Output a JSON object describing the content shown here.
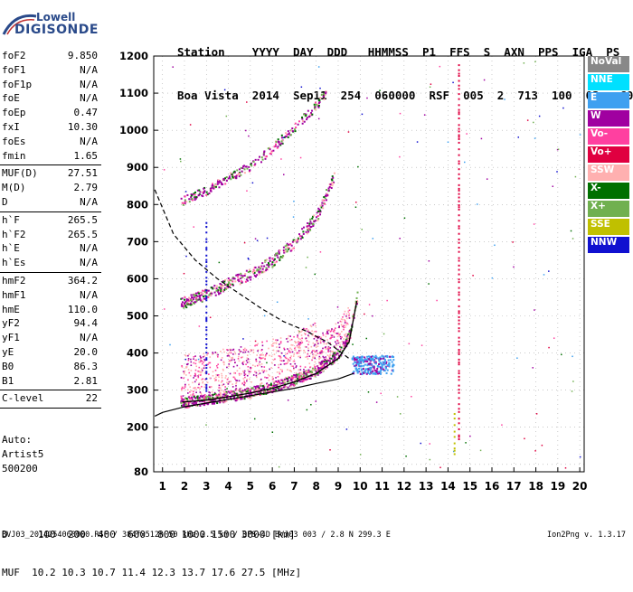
{
  "logo": {
    "line1": "Lowell",
    "line2": "DIGISONDE"
  },
  "header": {
    "labels": [
      "Station",
      "YYYY",
      "DAY",
      "DDD",
      "HHMMSS",
      "P1",
      "FFS",
      "S",
      "AXN",
      "PPS",
      "IGA",
      "PS"
    ],
    "values": [
      "Boa Vista",
      "2014",
      "Sep11",
      "254",
      "060000",
      "RSF",
      "005",
      "2",
      "713",
      "100",
      "03+",
      "C0"
    ]
  },
  "params": {
    "group1": [
      {
        "name": "foF2",
        "value": "9.850"
      },
      {
        "name": "foF1",
        "value": "N/A"
      },
      {
        "name": "foF1p",
        "value": "N/A"
      },
      {
        "name": "foE",
        "value": "N/A"
      },
      {
        "name": "foEp",
        "value": "0.47"
      },
      {
        "name": "fxI",
        "value": "10.30"
      },
      {
        "name": "foEs",
        "value": "N/A"
      },
      {
        "name": "fmin",
        "value": "1.65"
      }
    ],
    "group2": [
      {
        "name": "MUF(D)",
        "value": "27.51"
      },
      {
        "name": "M(D)",
        "value": "2.79"
      },
      {
        "name": "D",
        "value": "N/A"
      }
    ],
    "group3": [
      {
        "name": "h`F",
        "value": "265.5"
      },
      {
        "name": "h`F2",
        "value": "265.5"
      },
      {
        "name": "h`E",
        "value": "N/A"
      },
      {
        "name": "h`Es",
        "value": "N/A"
      }
    ],
    "group4": [
      {
        "name": "hmF2",
        "value": "364.2"
      },
      {
        "name": "hmF1",
        "value": "N/A"
      },
      {
        "name": "hmE",
        "value": "110.0"
      },
      {
        "name": "yF2",
        "value": "94.4"
      },
      {
        "name": "yF1",
        "value": "N/A"
      },
      {
        "name": "yE",
        "value": "20.0"
      },
      {
        "name": "B0",
        "value": "86.3"
      },
      {
        "name": "B1",
        "value": "2.81"
      }
    ],
    "group5": [
      {
        "name": "C-level",
        "value": "22"
      }
    ]
  },
  "auto": {
    "line1": "Auto:",
    "line2": "Artist5",
    "line3": "500200"
  },
  "bottom": {
    "d_row": "D     100  200  400  600  800 1000 1500 3000 [km]",
    "muf_row": "MUF  10.2 10.3 10.7 11.4 12.3 13.7 17.6 27.5 [MHz]"
  },
  "footer": {
    "left": "BVJ03_2014254060000.RSF / 384fx512h 50 kHz 2.5 km / DPS-4D BVJ03 003 / 2.8 N 299.3 E",
    "right": "Ion2Png v. 1.3.17"
  },
  "legend": [
    {
      "label": "NoVal",
      "color": "#888888"
    },
    {
      "label": "NNE",
      "color": "#00e0ff"
    },
    {
      "label": "E",
      "color": "#3ea0f0"
    },
    {
      "label": "W",
      "color": "#a000a0"
    },
    {
      "label": "Vo-",
      "color": "#ff40a0"
    },
    {
      "label": "Vo+",
      "color": "#e00040"
    },
    {
      "label": "SSW",
      "color": "#ffb0b0"
    },
    {
      "label": "X-",
      "color": "#007000"
    },
    {
      "label": "X+",
      "color": "#70b050"
    },
    {
      "label": "SSE",
      "color": "#c0c000"
    },
    {
      "label": "NNW",
      "color": "#1010d0"
    }
  ],
  "chart_data": {
    "type": "scatter",
    "xlabel": "",
    "ylabel": "",
    "xlim": [
      0.6,
      20.2
    ],
    "ylim": [
      80,
      1200
    ],
    "xticks": [
      1,
      2,
      3,
      4,
      5,
      6,
      7,
      8,
      9,
      10,
      11,
      12,
      13,
      14,
      15,
      16,
      17,
      18,
      19,
      20
    ],
    "yticks": [
      100,
      200,
      300,
      400,
      500,
      600,
      700,
      800,
      900,
      1000,
      1100,
      1200
    ],
    "yticklabels_shown": [
      80,
      200,
      300,
      400,
      500,
      600,
      700,
      800,
      900,
      1000,
      1100,
      1200
    ],
    "grid": "dotted",
    "traces": {
      "O_first_hop": {
        "x": [
          1.8,
          3,
          4,
          5,
          6,
          7,
          8,
          9,
          9.5,
          9.85
        ],
        "y": [
          268,
          275,
          285,
          295,
          310,
          330,
          355,
          400,
          450,
          555
        ]
      },
      "O_second_hop": {
        "x": [
          1.8,
          3,
          4,
          5,
          6,
          7,
          8,
          8.8
        ],
        "y": [
          535,
          560,
          590,
          615,
          650,
          700,
          770,
          880
        ]
      },
      "O_third_hop": {
        "x": [
          1.8,
          3,
          4,
          5,
          6,
          7,
          8,
          8.5
        ],
        "y": [
          810,
          840,
          875,
          905,
          955,
          1010,
          1070,
          1110
        ]
      },
      "X_first_hop_cloud": {
        "x": [
          9.6,
          10,
          10.5,
          11,
          11.5
        ],
        "y": [
          360,
          365,
          370,
          375,
          370
        ]
      }
    },
    "profile_curves": {
      "virtual_height_fit": {
        "x": [
          1.9,
          3,
          4,
          5,
          6,
          7,
          8,
          9,
          9.5,
          9.85
        ],
        "y": [
          268,
          273,
          282,
          292,
          305,
          322,
          345,
          385,
          430,
          540
        ]
      },
      "true_height_profile": {
        "x": [
          0.65,
          1,
          2,
          3,
          4,
          5,
          6,
          7,
          8,
          9,
          9.7
        ],
        "y": [
          230,
          240,
          255,
          265,
          275,
          285,
          295,
          305,
          318,
          330,
          345
        ]
      },
      "dashed_profile": {
        "x": [
          0.65,
          1.5,
          2.5,
          3.5,
          4.5,
          5.5,
          6.5,
          7.5,
          8.5,
          9.5
        ],
        "y": [
          840,
          720,
          650,
          600,
          560,
          520,
          485,
          460,
          430,
          385
        ]
      }
    }
  }
}
